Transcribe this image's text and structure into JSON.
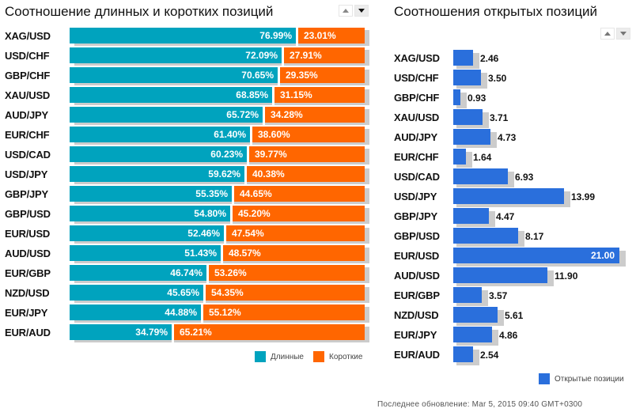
{
  "colors": {
    "long": "#00A3BE",
    "short": "#FF6600",
    "open": "#2A6FDC",
    "shadow": "#CCCCCC"
  },
  "chart_data": [
    {
      "type": "bar",
      "orientation": "horizontal",
      "stacked": true,
      "title": "Соотношение длинных и коротких позиций",
      "categories": [
        "XAG/USD",
        "USD/CHF",
        "GBP/CHF",
        "XAU/USD",
        "AUD/JPY",
        "EUR/CHF",
        "USD/CAD",
        "USD/JPY",
        "GBP/JPY",
        "GBP/USD",
        "EUR/USD",
        "AUD/USD",
        "EUR/GBP",
        "NZD/USD",
        "EUR/JPY",
        "EUR/AUD"
      ],
      "series": [
        {
          "name": "Длинные",
          "color": "#00A3BE",
          "values": [
            76.99,
            72.09,
            70.65,
            68.85,
            65.72,
            61.4,
            60.23,
            59.62,
            55.35,
            54.8,
            52.46,
            51.43,
            46.74,
            45.65,
            44.88,
            34.79
          ]
        },
        {
          "name": "Короткие",
          "color": "#FF6600",
          "values": [
            23.01,
            27.91,
            29.35,
            31.15,
            34.28,
            38.6,
            39.77,
            40.38,
            44.65,
            45.2,
            47.54,
            48.57,
            53.26,
            54.35,
            55.12,
            65.21
          ]
        }
      ],
      "labels": {
        "long": [
          "76.99%",
          "72.09%",
          "70.65%",
          "68.85%",
          "65.72%",
          "61.40%",
          "60.23%",
          "59.62%",
          "55.35%",
          "54.80%",
          "52.46%",
          "51.43%",
          "46.74%",
          "45.65%",
          "44.88%",
          "34.79%"
        ],
        "short": [
          "23.01%",
          "27.91%",
          "29.35%",
          "31.15%",
          "34.28%",
          "38.60%",
          "39.77%",
          "40.38%",
          "44.65%",
          "45.20%",
          "47.54%",
          "48.57%",
          "53.26%",
          "54.35%",
          "55.12%",
          "65.21%"
        ]
      },
      "xlim": [
        0,
        100
      ],
      "unit": "%",
      "legend": [
        "Длинные",
        "Короткие"
      ],
      "legend_position": "bottom-right",
      "grid": false
    },
    {
      "type": "bar",
      "orientation": "horizontal",
      "title": "Соотношения открытых позиций",
      "categories": [
        "XAG/USD",
        "USD/CHF",
        "GBP/CHF",
        "XAU/USD",
        "AUD/JPY",
        "EUR/CHF",
        "USD/CAD",
        "USD/JPY",
        "GBP/JPY",
        "GBP/USD",
        "EUR/USD",
        "AUD/USD",
        "EUR/GBP",
        "NZD/USD",
        "EUR/JPY",
        "EUR/AUD"
      ],
      "series": [
        {
          "name": "Открытые позиции",
          "color": "#2A6FDC",
          "values": [
            2.46,
            3.5,
            0.93,
            3.71,
            4.73,
            1.64,
            6.93,
            13.99,
            4.47,
            8.17,
            21.0,
            11.9,
            3.57,
            5.61,
            4.86,
            2.54
          ]
        }
      ],
      "labels": [
        "2.46",
        "3.50",
        "0.93",
        "3.71",
        "4.73",
        "1.64",
        "6.93",
        "13.99",
        "4.47",
        "8.17",
        "21.00",
        "11.90",
        "3.57",
        "5.61",
        "4.86",
        "2.54"
      ],
      "xlim": [
        0,
        21
      ],
      "legend": [
        "Открытые позиции"
      ],
      "legend_position": "bottom-right",
      "grid": false
    }
  ],
  "left_panel": {
    "title": "Соотношение длинных и коротких позиций",
    "legend": {
      "long": "Длинные",
      "short": "Короткие"
    }
  },
  "right_panel": {
    "title": "Соотношения открытых позиций",
    "legend": {
      "open": "Открытые позиции"
    }
  },
  "sort_controls": {
    "up": "sort-ascending",
    "down": "sort-descending"
  },
  "footer": {
    "last_update": "Последнее обновление: Mar 5, 2015 09:40 GMT+0300"
  }
}
